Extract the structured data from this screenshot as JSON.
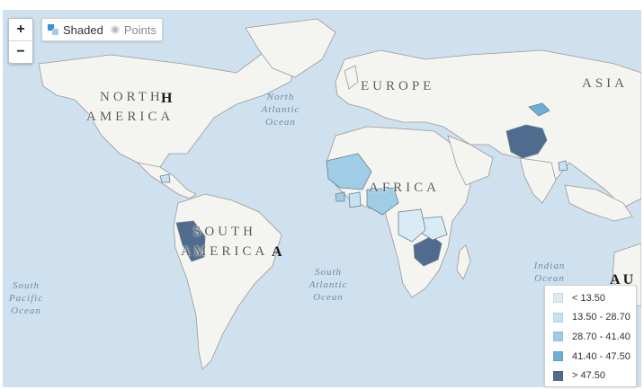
{
  "controls": {
    "zoom_in": "+",
    "zoom_out": "−",
    "mode_shaded": "Shaded",
    "mode_points": "Points",
    "selected_mode": "Shaded"
  },
  "labels": {
    "north_america_1": "NORTH",
    "north_america_2": "AMERICA",
    "europe": "EUROPE",
    "asia": "ASIA",
    "africa": "AFRICA",
    "south_america_1": "SOUTH",
    "south_america_2": "AMERICA",
    "north_atlantic": [
      "North",
      "Atlantic",
      "Ocean"
    ],
    "south_atlantic": [
      "South",
      "Atlantic",
      "Ocean"
    ],
    "south_pacific": [
      "South",
      "Pacific",
      "Ocean"
    ],
    "indian": [
      "Indian",
      "Ocean"
    ],
    "partial_au": "A U",
    "partial_a_right": "A",
    "partial_a_na": "H"
  },
  "legend": [
    {
      "label": "< 13.50",
      "color": "#d9ecf6"
    },
    {
      "label": "13.50 - 28.70",
      "color": "#c5e2f2"
    },
    {
      "label": "28.70 - 41.40",
      "color": "#9fcde6"
    },
    {
      "label": "41.40 - 47.50",
      "color": "#6baed6"
    },
    {
      "label": "> 47.50",
      "color": "#4f6c8e"
    }
  ],
  "colors": {
    "ocean": "#cfe0ee",
    "land": "#f4f4f0",
    "border": "#9a9a9a"
  }
}
